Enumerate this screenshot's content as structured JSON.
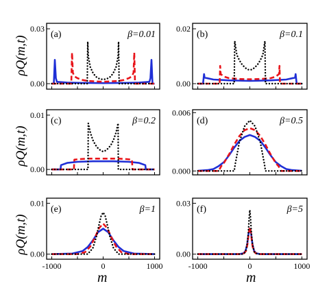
{
  "figure": {
    "ylabel": "ρQ(m,t)",
    "xlabel": "m"
  },
  "colors": {
    "dotted": "#000000",
    "dashed": "#e8141a",
    "solid": "#1f2fd6"
  },
  "chart_data": [
    {
      "type": "line",
      "panel": "(a)",
      "beta_label": "β=0.01",
      "xlim": [
        -1100,
        1100
      ],
      "ylim": [
        -0.003,
        0.033
      ],
      "yticks": [
        "0.00",
        "0.03"
      ],
      "xticks": [],
      "series": [
        {
          "style": "solid",
          "x": [
            -1000,
            -960,
            -940,
            -920,
            -900,
            -700,
            -400,
            0,
            400,
            700,
            900,
            920,
            940,
            960,
            1000
          ],
          "y": [
            0,
            0,
            0.013,
            0.003,
            0.001,
            0.0006,
            0.0004,
            0.0003,
            0.0004,
            0.0006,
            0.001,
            0.003,
            0.013,
            0,
            0
          ]
        },
        {
          "style": "dashed",
          "x": [
            -1000,
            -620,
            -605,
            -590,
            -560,
            -500,
            -400,
            -300,
            0,
            300,
            400,
            500,
            560,
            590,
            605,
            620,
            1000
          ],
          "y": [
            0,
            0,
            0.017,
            0.006,
            0.004,
            0.003,
            0.002,
            0.0015,
            0.001,
            0.0015,
            0.002,
            0.003,
            0.004,
            0.006,
            0.017,
            0,
            0
          ]
        },
        {
          "style": "dotted",
          "x": [
            -1000,
            -310,
            -300,
            -290,
            -250,
            -200,
            -150,
            -100,
            -50,
            0,
            50,
            100,
            150,
            200,
            250,
            290,
            300,
            310,
            1000
          ],
          "y": [
            0,
            0,
            0.023,
            0.015,
            0.009,
            0.006,
            0.004,
            0.003,
            0.0025,
            0.0023,
            0.0025,
            0.003,
            0.004,
            0.006,
            0.009,
            0.015,
            0.023,
            0,
            0
          ]
        }
      ]
    },
    {
      "type": "line",
      "panel": "(b)",
      "beta_label": "β=0.1",
      "xlim": [
        -1100,
        1100
      ],
      "ylim": [
        -0.002,
        0.022
      ],
      "yticks": [
        "0.00",
        "0.02"
      ],
      "xticks": [],
      "series": [
        {
          "style": "solid",
          "x": [
            -1000,
            -900,
            -880,
            -870,
            -700,
            -400,
            0,
            400,
            700,
            870,
            880,
            900,
            1000
          ],
          "y": [
            0,
            0,
            0.0035,
            0.0022,
            0.0015,
            0.0012,
            0.001,
            0.0012,
            0.0015,
            0.0022,
            0.0035,
            0,
            0
          ]
        },
        {
          "style": "dashed",
          "x": [
            -1000,
            -580,
            -570,
            -560,
            -500,
            -400,
            -200,
            0,
            200,
            400,
            500,
            560,
            570,
            580,
            1000
          ],
          "y": [
            0,
            0,
            0.0065,
            0.0035,
            0.0026,
            0.002,
            0.0017,
            0.0016,
            0.0017,
            0.002,
            0.0026,
            0.0035,
            0.0065,
            0,
            0
          ]
        },
        {
          "style": "dotted",
          "x": [
            -1000,
            -300,
            -290,
            -250,
            -200,
            -150,
            -100,
            -50,
            0,
            50,
            100,
            150,
            200,
            250,
            290,
            300,
            1000
          ],
          "y": [
            0,
            0,
            0.0155,
            0.0105,
            0.0085,
            0.007,
            0.006,
            0.0052,
            0.005,
            0.0052,
            0.006,
            0.007,
            0.0085,
            0.0105,
            0.0155,
            0,
            0
          ]
        }
      ]
    },
    {
      "type": "line",
      "panel": "(c)",
      "beta_label": "β=0.2",
      "xlim": [
        -1100,
        1100
      ],
      "ylim": [
        -0.001,
        0.011
      ],
      "yticks": [
        "0.00",
        "0.01"
      ],
      "xticks": [],
      "series": [
        {
          "style": "solid",
          "x": [
            -1000,
            -830,
            -820,
            -700,
            -500,
            -200,
            0,
            200,
            500,
            700,
            820,
            830,
            1000
          ],
          "y": [
            0,
            0,
            0.0008,
            0.0012,
            0.0014,
            0.0015,
            0.0015,
            0.0015,
            0.0014,
            0.0012,
            0.0008,
            0,
            0
          ]
        },
        {
          "style": "dashed",
          "x": [
            -1000,
            -570,
            -560,
            -450,
            -300,
            0,
            300,
            450,
            560,
            570,
            1000
          ],
          "y": [
            0,
            0,
            0.0018,
            0.0019,
            0.002,
            0.002,
            0.002,
            0.0019,
            0.0018,
            0,
            0
          ]
        },
        {
          "style": "dotted",
          "x": [
            -1000,
            -295,
            -290,
            -250,
            -200,
            -150,
            -100,
            -50,
            0,
            50,
            100,
            150,
            200,
            250,
            290,
            295,
            1000
          ],
          "y": [
            0,
            0,
            0.0085,
            0.0068,
            0.0054,
            0.0045,
            0.0039,
            0.0035,
            0.0033,
            0.0035,
            0.0039,
            0.0045,
            0.0054,
            0.0068,
            0.0085,
            0,
            0
          ]
        }
      ]
    },
    {
      "type": "line",
      "panel": "(d)",
      "beta_label": "β=0.5",
      "xlim": [
        -1100,
        1100
      ],
      "ylim": [
        -0.0004,
        0.0063
      ],
      "yticks": [
        "0.000",
        "0.006"
      ],
      "xticks": [],
      "series": [
        {
          "style": "solid",
          "x": [
            -1000,
            -800,
            -700,
            -600,
            -500,
            -400,
            -300,
            -200,
            -100,
            0,
            100,
            200,
            300,
            400,
            500,
            600,
            700,
            800,
            1000
          ],
          "y": [
            2e-05,
            0.0001,
            0.0002,
            0.0005,
            0.0009,
            0.0016,
            0.0024,
            0.0031,
            0.0035,
            0.0037,
            0.0035,
            0.0031,
            0.0024,
            0.0016,
            0.0009,
            0.0005,
            0.0002,
            0.0001,
            2e-05
          ]
        },
        {
          "style": "dashed",
          "x": [
            -1000,
            -600,
            -550,
            -500,
            -400,
            -300,
            -200,
            -100,
            0,
            100,
            200,
            300,
            400,
            500,
            550,
            600,
            1000
          ],
          "y": [
            0,
            0,
            0.0005,
            0.0008,
            0.0017,
            0.0027,
            0.0036,
            0.0042,
            0.0044,
            0.0042,
            0.0036,
            0.0027,
            0.0017,
            0.0008,
            0.0005,
            0,
            0
          ]
        },
        {
          "style": "dotted",
          "x": [
            -1000,
            -300,
            -280,
            -200,
            -100,
            0,
            100,
            200,
            280,
            300,
            1000
          ],
          "y": [
            0,
            0,
            0.0007,
            0.003,
            0.0046,
            0.0052,
            0.0046,
            0.003,
            0.0007,
            0,
            0
          ]
        }
      ]
    },
    {
      "type": "line",
      "panel": "(e)",
      "beta_label": "β=1",
      "xlim": [
        -1100,
        1100
      ],
      "ylim": [
        -0.001,
        0.011
      ],
      "yticks": [
        "0.00",
        "0.01"
      ],
      "xticks": [
        "-1000",
        "0",
        "1000"
      ],
      "series": [
        {
          "style": "solid",
          "x": [
            -1000,
            -600,
            -400,
            -300,
            -200,
            -100,
            0,
            100,
            200,
            300,
            400,
            600,
            1000
          ],
          "y": [
            0,
            0.0001,
            0.0006,
            0.0014,
            0.0027,
            0.0043,
            0.005,
            0.0043,
            0.0027,
            0.0014,
            0.0006,
            0.0001,
            0
          ]
        },
        {
          "style": "dashed",
          "x": [
            -1000,
            -500,
            -350,
            -250,
            -150,
            -80,
            0,
            80,
            150,
            250,
            350,
            500,
            1000
          ],
          "y": [
            0,
            0,
            0.0004,
            0.0015,
            0.0035,
            0.0051,
            0.006,
            0.0051,
            0.0035,
            0.0015,
            0.0004,
            0,
            0
          ]
        },
        {
          "style": "dotted",
          "x": [
            -1000,
            -300,
            -200,
            -130,
            -80,
            -40,
            0,
            40,
            80,
            130,
            200,
            300,
            1000
          ],
          "y": [
            0,
            0,
            0.0012,
            0.0035,
            0.0058,
            0.0075,
            0.0082,
            0.0075,
            0.0058,
            0.0035,
            0.0012,
            0,
            0
          ]
        }
      ]
    },
    {
      "type": "line",
      "panel": "(f)",
      "beta_label": "β=5",
      "xlim": [
        -1100,
        1100
      ],
      "ylim": [
        -0.003,
        0.033
      ],
      "yticks": [
        "0.00",
        "0.03"
      ],
      "xticks": [
        "-1000",
        "0",
        "1000"
      ],
      "series": [
        {
          "style": "solid",
          "x": [
            -1000,
            -200,
            -120,
            -80,
            -50,
            -25,
            0,
            25,
            50,
            80,
            120,
            200,
            1000
          ],
          "y": [
            0,
            0,
            0.0005,
            0.002,
            0.006,
            0.012,
            0.015,
            0.012,
            0.006,
            0.002,
            0.0005,
            0,
            0
          ]
        },
        {
          "style": "dashed",
          "x": [
            -1000,
            -200,
            -110,
            -70,
            -45,
            -20,
            0,
            20,
            45,
            70,
            110,
            200,
            1000
          ],
          "y": [
            0,
            0,
            0.0005,
            0.002,
            0.006,
            0.013,
            0.016,
            0.013,
            0.006,
            0.002,
            0.0005,
            0,
            0
          ]
        },
        {
          "style": "dotted",
          "x": [
            -1000,
            -150,
            -90,
            -55,
            -30,
            -12,
            0,
            12,
            30,
            55,
            90,
            150,
            1000
          ],
          "y": [
            0,
            0,
            0.001,
            0.005,
            0.012,
            0.022,
            0.026,
            0.022,
            0.012,
            0.005,
            0.001,
            0,
            0
          ]
        }
      ]
    }
  ]
}
